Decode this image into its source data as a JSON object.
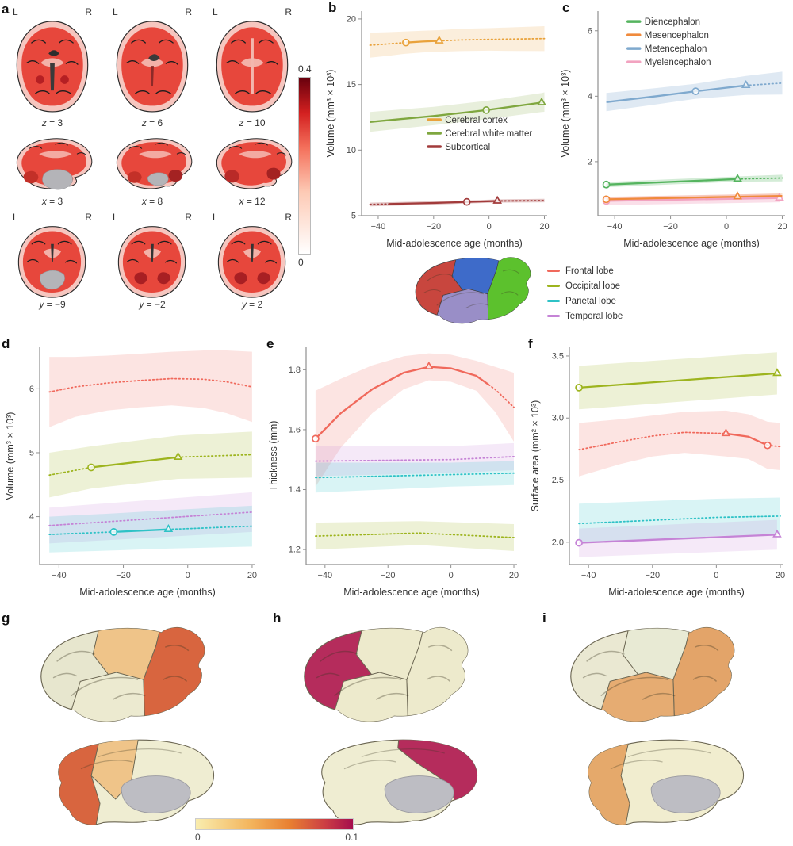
{
  "panels": {
    "a": "a",
    "b": "b",
    "c": "c",
    "d": "d",
    "e": "e",
    "f": "f",
    "g": "g",
    "h": "h",
    "i": "i"
  },
  "panel_a": {
    "rows": [
      {
        "type": "axial",
        "slices": [
          {
            "l": "L",
            "r": "R",
            "cap_var": "z",
            "cap_rest": " = 3"
          },
          {
            "l": "L",
            "r": "R",
            "cap_var": "z",
            "cap_rest": " = 6"
          },
          {
            "l": "L",
            "r": "R",
            "cap_var": "z",
            "cap_rest": " = 10"
          }
        ]
      },
      {
        "type": "sagittal",
        "slices": [
          {
            "cap_var": "x",
            "cap_rest": " = 3"
          },
          {
            "cap_var": "x",
            "cap_rest": " = 8"
          },
          {
            "cap_var": "x",
            "cap_rest": " = 12"
          }
        ]
      },
      {
        "type": "coronal",
        "slices": [
          {
            "l": "L",
            "r": "R",
            "cap_var": "y",
            "cap_rest": " = −9"
          },
          {
            "l": "L",
            "r": "R",
            "cap_var": "y",
            "cap_rest": " = −2"
          },
          {
            "l": "L",
            "r": "R",
            "cap_var": "y",
            "cap_rest": " = 2"
          }
        ]
      }
    ],
    "colorbar": {
      "max": "0.4",
      "min": "0"
    }
  },
  "lobe_legend": {
    "items": [
      {
        "label": "Frontal lobe",
        "color": "#F0695C"
      },
      {
        "label": "Occipital lobe",
        "color": "#9DB41E"
      },
      {
        "label": "Parietal lobe",
        "color": "#2EC2C6"
      },
      {
        "label": "Temporal lobe",
        "color": "#C583D6"
      }
    ]
  },
  "lobe_diagram": {
    "fills": {
      "frontal": "#C8463E",
      "parietal": "#3E6BC9",
      "occipital": "#5CC12D",
      "temporal": "#998EC7"
    }
  },
  "brain_maps": {
    "g": {
      "lateral": {
        "frontal": "#E7E6CE",
        "parietal": "#EFC489",
        "occipital": "#D8653F",
        "temporal": "#ECEAD0"
      },
      "medial": {
        "base": "#EFEDD2",
        "occ": "#D8653F",
        "par": "#EFC489"
      }
    },
    "h": {
      "lateral": {
        "frontal": "#B52C5C",
        "parietal": "#EDEACC",
        "occipital": "#EDEACC",
        "temporal": "#EDEACC"
      },
      "medial": {
        "base": "#EFEDD2",
        "crim": "#B52C5C"
      }
    },
    "i": {
      "lateral": {
        "frontal": "#EAE8D2",
        "parietal": "#E8EAD4",
        "occipital": "#E3A469",
        "temporal": "#E6AC72"
      },
      "medial": {
        "base": "#F1EDCF",
        "occ": "#E5A96B"
      }
    }
  },
  "bottom_colorbar": {
    "min": "0",
    "max": "0.1"
  },
  "chart_data": [
    {
      "id": "b",
      "type": "line",
      "xlabel": "Mid-adolescence age (months)",
      "ylabel": "Volume (mm³ × 10³)",
      "xlim": [
        -46,
        21
      ],
      "ylim": [
        5,
        20.6
      ],
      "xticks": [
        -40,
        -20,
        0,
        20
      ],
      "yticks": [
        "5",
        "10",
        "15",
        "20"
      ],
      "legend": {
        "fx": 0.36,
        "fy": 0.5,
        "items": [
          {
            "label": "Cerebral cortex",
            "color": "#E9A23B"
          },
          {
            "label": "Cerebral white matter",
            "color": "#7FA73F"
          },
          {
            "label": "Subcortical",
            "color": "#A23B3B"
          }
        ]
      },
      "series": [
        {
          "name": "Cerebral cortex",
          "color": "#E9A23B",
          "x": [
            -43,
            -36,
            -30,
            -24,
            -18,
            -10,
            0,
            10,
            20
          ],
          "y": [
            18.0,
            18.1,
            18.2,
            18.28,
            18.33,
            18.4,
            18.44,
            18.47,
            18.5
          ],
          "hi": [
            18.95,
            19.0,
            19.05,
            19.1,
            19.15,
            19.25,
            19.3,
            19.38,
            19.45
          ],
          "lo": [
            17.05,
            17.2,
            17.35,
            17.45,
            17.5,
            17.55,
            17.58,
            17.56,
            17.55
          ],
          "solid": [
            -30,
            -18
          ],
          "circle": -30,
          "triangle": -18
        },
        {
          "name": "Cerebral white matter",
          "color": "#7FA73F",
          "x": [
            -43,
            -20,
            -1,
            19,
            20
          ],
          "y": [
            12.15,
            12.6,
            13.05,
            13.62,
            13.65
          ],
          "hi": [
            12.9,
            13.3,
            13.75,
            14.35,
            14.4
          ],
          "lo": [
            11.4,
            11.9,
            12.35,
            12.9,
            12.92
          ],
          "solid": [
            -43,
            19
          ],
          "circle": -1,
          "triangle": 19
        },
        {
          "name": "Subcortical",
          "color": "#A23B3B",
          "band_opacity": 0.3,
          "x": [
            -43,
            -20,
            -8,
            3,
            20
          ],
          "y": [
            5.85,
            5.97,
            6.05,
            6.12,
            6.15
          ],
          "hi": [
            5.99,
            6.1,
            6.17,
            6.24,
            6.28
          ],
          "lo": [
            5.71,
            5.84,
            5.93,
            6.0,
            6.02
          ],
          "solid": [
            -36,
            3
          ],
          "circle": -8,
          "triangle": 3
        }
      ]
    },
    {
      "id": "c",
      "type": "line",
      "xlabel": "Mid-adolescence age (months)",
      "ylabel": "Volume (mm³ × 10³)",
      "xlim": [
        -46,
        21
      ],
      "ylim": [
        0.35,
        6.6
      ],
      "xticks": [
        -40,
        -20,
        0,
        20
      ],
      "yticks": [
        "2",
        "4",
        "6"
      ],
      "legend": {
        "fx": 0.16,
        "fy": 0.02,
        "items": [
          {
            "label": "Diencephalon",
            "color": "#55B45F"
          },
          {
            "label": "Mesencephalon",
            "color": "#F08A3C"
          },
          {
            "label": "Metencephalon",
            "color": "#7FA9CE"
          },
          {
            "label": "Myelencephalon",
            "color": "#F2A3C0"
          }
        ]
      },
      "series": [
        {
          "name": "Metencephalon",
          "color": "#7FA9CE",
          "band_opacity": 0.25,
          "x": [
            -43,
            -25,
            -11,
            7,
            20
          ],
          "y": [
            3.82,
            4.0,
            4.15,
            4.33,
            4.4
          ],
          "hi": [
            4.1,
            4.25,
            4.38,
            4.62,
            4.75
          ],
          "lo": [
            3.54,
            3.75,
            3.92,
            4.04,
            4.05
          ],
          "solid": [
            -43,
            7
          ],
          "circle": -11,
          "triangle": 7
        },
        {
          "name": "Diencephalon",
          "color": "#55B45F",
          "band_opacity": 0.25,
          "x": [
            -43,
            4,
            20
          ],
          "y": [
            1.3,
            1.47,
            1.5
          ],
          "hi": [
            1.38,
            1.55,
            1.6
          ],
          "lo": [
            1.22,
            1.39,
            1.4
          ],
          "solid": [
            -43,
            4
          ],
          "circle": -43,
          "triangle": 4
        },
        {
          "name": "Myelencephalon",
          "color": "#F2A3C0",
          "band_opacity": 0.35,
          "x": [
            -43,
            19
          ],
          "y": [
            0.8,
            0.89
          ],
          "hi": [
            0.93,
            1.02
          ],
          "lo": [
            0.67,
            0.76
          ],
          "solid": [
            -43,
            19
          ],
          "circle": -43,
          "triangle": 19
        },
        {
          "name": "Mesencephalon",
          "color": "#F08A3C",
          "band_opacity": 0.25,
          "x": [
            -43,
            4,
            20
          ],
          "y": [
            0.85,
            0.93,
            0.95
          ],
          "hi": [
            0.92,
            1.0,
            1.03
          ],
          "lo": [
            0.78,
            0.86,
            0.87
          ],
          "solid": [
            -43,
            20
          ],
          "circle": -43,
          "triangle": 4
        }
      ]
    },
    {
      "id": "d",
      "type": "line",
      "xlabel": "Mid-adolescence age (months)",
      "ylabel": "Volume (mm³ × 10³)",
      "xlim": [
        -46,
        21
      ],
      "ylim": [
        3.25,
        6.65
      ],
      "xticks": [
        -40,
        -20,
        0,
        20
      ],
      "yticks": [
        "4",
        "5",
        "6"
      ],
      "series": [
        {
          "name": "Frontal lobe",
          "color": "#F0695C",
          "x": [
            -43,
            -35,
            -25,
            -15,
            -5,
            5,
            12,
            20
          ],
          "y": [
            5.95,
            6.03,
            6.09,
            6.13,
            6.16,
            6.15,
            6.11,
            6.03
          ],
          "hi": [
            6.5,
            6.5,
            6.52,
            6.55,
            6.58,
            6.6,
            6.6,
            6.58
          ],
          "lo": [
            5.4,
            5.56,
            5.66,
            5.71,
            5.74,
            5.7,
            5.62,
            5.48
          ],
          "solid": null,
          "circle": null,
          "triangle": null
        },
        {
          "name": "Occipital lobe",
          "color": "#9DB41E",
          "x": [
            -43,
            -30,
            -3,
            20
          ],
          "y": [
            4.65,
            4.77,
            4.93,
            4.97
          ],
          "hi": [
            5.0,
            5.1,
            5.27,
            5.33
          ],
          "lo": [
            4.3,
            4.44,
            4.59,
            4.61
          ],
          "solid": [
            -30,
            -3
          ],
          "circle": -30,
          "triangle": -3
        },
        {
          "name": "Temporal lobe",
          "color": "#C583D6",
          "x": [
            -43,
            20
          ],
          "y": [
            3.86,
            4.07
          ],
          "hi": [
            4.14,
            4.38
          ],
          "lo": [
            3.58,
            3.76
          ],
          "solid": null,
          "circle": null,
          "triangle": null
        },
        {
          "name": "Parietal lobe",
          "color": "#2EC2C6",
          "x": [
            -43,
            -23,
            -6,
            20
          ],
          "y": [
            3.72,
            3.76,
            3.8,
            3.85
          ],
          "hi": [
            4.0,
            4.05,
            4.1,
            4.17
          ],
          "lo": [
            3.44,
            3.47,
            3.5,
            3.53
          ],
          "solid": [
            -23,
            -6
          ],
          "circle": -23,
          "triangle": -6
        }
      ]
    },
    {
      "id": "e",
      "type": "line",
      "xlabel": "Mid-adolescence age (months)",
      "ylabel": "Thickness (mm)",
      "xlim": [
        -46,
        21
      ],
      "ylim": [
        1.15,
        1.875
      ],
      "xticks": [
        -40,
        -20,
        0,
        20
      ],
      "yticks": [
        "1.2",
        "1.4",
        "1.6",
        "1.8"
      ],
      "series": [
        {
          "name": "Frontal lobe",
          "color": "#F0695C",
          "x": [
            -43,
            -35,
            -25,
            -15,
            -7,
            0,
            8,
            14,
            20
          ],
          "y": [
            1.57,
            1.655,
            1.735,
            1.79,
            1.81,
            1.805,
            1.78,
            1.735,
            1.675
          ],
          "hi": [
            1.73,
            1.77,
            1.815,
            1.845,
            1.855,
            1.85,
            1.83,
            1.81,
            1.79
          ],
          "lo": [
            1.41,
            1.54,
            1.655,
            1.735,
            1.765,
            1.76,
            1.73,
            1.66,
            1.56
          ],
          "solid": [
            -43,
            12
          ],
          "circle": -43,
          "triangle": -7
        },
        {
          "name": "Temporal lobe",
          "color": "#C583D6",
          "x": [
            -43,
            0,
            20
          ],
          "y": [
            1.495,
            1.5,
            1.51
          ],
          "hi": [
            1.545,
            1.545,
            1.555
          ],
          "lo": [
            1.445,
            1.455,
            1.465
          ],
          "solid": null,
          "circle": null,
          "triangle": null
        },
        {
          "name": "Parietal lobe",
          "color": "#2EC2C6",
          "x": [
            -43,
            0,
            20
          ],
          "y": [
            1.44,
            1.45,
            1.455
          ],
          "hi": [
            1.49,
            1.49,
            1.495
          ],
          "lo": [
            1.39,
            1.41,
            1.415
          ],
          "solid": null,
          "circle": null,
          "triangle": null
        },
        {
          "name": "Occipital lobe",
          "color": "#9DB41E",
          "x": [
            -43,
            -10,
            20
          ],
          "y": [
            1.245,
            1.255,
            1.24
          ],
          "hi": [
            1.29,
            1.295,
            1.285
          ],
          "lo": [
            1.2,
            1.215,
            1.195
          ],
          "solid": null,
          "circle": null,
          "triangle": null
        }
      ]
    },
    {
      "id": "f",
      "type": "line",
      "xlabel": "Mid-adolescence age (months)",
      "ylabel": "Surface area (mm² × 10³)",
      "xlim": [
        -46,
        21
      ],
      "ylim": [
        1.82,
        3.57
      ],
      "xticks": [
        -40,
        -20,
        0,
        20
      ],
      "yticks": [
        "2.0",
        "2.5",
        "3.0",
        "3.5"
      ],
      "series": [
        {
          "name": "Occipital lobe",
          "color": "#9DB41E",
          "x": [
            -43,
            19
          ],
          "y": [
            3.245,
            3.36
          ],
          "hi": [
            3.42,
            3.53
          ],
          "lo": [
            3.07,
            3.19
          ],
          "solid": [
            -43,
            19
          ],
          "circle": -43,
          "triangle": 19
        },
        {
          "name": "Frontal lobe",
          "color": "#F0695C",
          "x": [
            -43,
            -30,
            -20,
            -10,
            3,
            10,
            16,
            20
          ],
          "y": [
            2.745,
            2.81,
            2.855,
            2.885,
            2.875,
            2.85,
            2.78,
            2.77
          ],
          "hi": [
            2.96,
            2.99,
            3.02,
            3.05,
            3.06,
            3.03,
            2.97,
            2.96
          ],
          "lo": [
            2.53,
            2.63,
            2.69,
            2.72,
            2.69,
            2.67,
            2.59,
            2.58
          ],
          "solid": [
            3,
            16
          ],
          "circle": 16,
          "triangle": 3
        },
        {
          "name": "Parietal lobe",
          "color": "#2EC2C6",
          "x": [
            -43,
            0,
            20
          ],
          "y": [
            2.15,
            2.2,
            2.21
          ],
          "hi": [
            2.31,
            2.35,
            2.36
          ],
          "lo": [
            1.99,
            2.05,
            2.06
          ],
          "solid": null,
          "circle": null,
          "triangle": null
        },
        {
          "name": "Temporal lobe",
          "color": "#C583D6",
          "x": [
            -43,
            19
          ],
          "y": [
            1.995,
            2.06
          ],
          "hi": [
            2.11,
            2.18
          ],
          "lo": [
            1.88,
            1.94
          ],
          "solid": [
            -43,
            19
          ],
          "circle": -43,
          "triangle": 19
        }
      ]
    }
  ]
}
